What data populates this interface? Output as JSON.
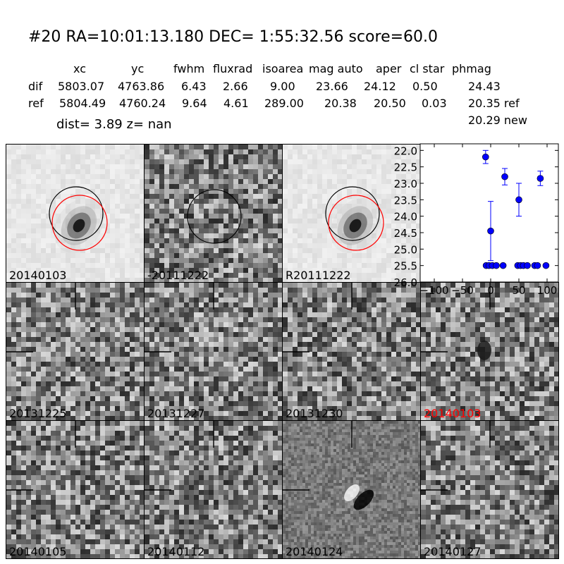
{
  "header": {
    "title": "#20   RA=10:01:13.180 DEC= 1:55:32.56      score=60.0",
    "columns": [
      "xc",
      "yc",
      "fwhm",
      "fluxrad",
      "isoarea",
      "mag auto",
      "aper",
      "cl star",
      "phmag"
    ],
    "rows": [
      {
        "label": "dif",
        "values": [
          "5803.07",
          "4763.86",
          "6.43",
          "2.66",
          "9.00",
          "23.66",
          "24.12",
          "0.50",
          "24.43"
        ]
      },
      {
        "label": "ref",
        "values": [
          "5804.49",
          "4760.24",
          "9.64",
          "4.61",
          "289.00",
          "20.38",
          "20.50",
          "0.03",
          "20.35 ref"
        ]
      }
    ],
    "extra_phmag": "20.29 new",
    "dist_line": "dist=  3.89      z=   nan"
  },
  "panels": [
    {
      "label": "20140103",
      "kind": "galaxy",
      "label_color": "#000000"
    },
    {
      "label": "-20111222",
      "kind": "diff",
      "label_color": "#000000"
    },
    {
      "label": "R20111222",
      "kind": "galaxy",
      "label_color": "#000000"
    },
    {
      "label": "20131225",
      "kind": "noise",
      "label_color": "#000000"
    },
    {
      "label": "20131227",
      "kind": "noise",
      "label_color": "#000000"
    },
    {
      "label": "20131230",
      "kind": "noise",
      "label_color": "#000000"
    },
    {
      "label": "20140103",
      "kind": "noise-blob",
      "label_color": "#ff0000"
    },
    {
      "label": "20140105",
      "kind": "noise",
      "label_color": "#000000"
    },
    {
      "label": "20140112",
      "kind": "noise",
      "label_color": "#000000"
    },
    {
      "label": "20140124",
      "kind": "dipole",
      "label_color": "#000000"
    },
    {
      "label": "20140127",
      "kind": "noise",
      "label_color": "#000000"
    }
  ],
  "chart_data": {
    "type": "scatter",
    "title": "",
    "xlabel": "",
    "ylabel": "",
    "xlim": [
      -125,
      120
    ],
    "ylim": [
      26.0,
      21.8
    ],
    "y_inverted": true,
    "x_ticks": [
      -100,
      -50,
      0,
      50,
      100
    ],
    "x_tick_labels": [
      "−100",
      "−50",
      "0",
      "50",
      "100"
    ],
    "y_ticks": [
      22.0,
      22.5,
      23.0,
      23.5,
      24.0,
      24.5,
      25.0,
      25.5,
      26.0
    ],
    "y_tick_labels": [
      "22.0",
      "22.5",
      "23.0",
      "23.5",
      "24.0",
      "24.5",
      "25.0",
      "25.5",
      "26.0"
    ],
    "marker_color": "#0000ff",
    "points": [
      {
        "x": -9,
        "y": 22.2,
        "err": 0.2
      },
      {
        "x": 0,
        "y": 24.45,
        "err": 0.9
      },
      {
        "x": 25,
        "y": 22.8,
        "err": 0.25
      },
      {
        "x": 50,
        "y": 23.5,
        "err": 0.5
      },
      {
        "x": 88,
        "y": 22.85,
        "err": 0.22
      },
      {
        "x": -8,
        "y": 25.5
      },
      {
        "x": -3,
        "y": 25.5
      },
      {
        "x": 3,
        "y": 25.5
      },
      {
        "x": 10,
        "y": 25.5
      },
      {
        "x": 22,
        "y": 25.5
      },
      {
        "x": 48,
        "y": 25.5
      },
      {
        "x": 53,
        "y": 25.5
      },
      {
        "x": 58,
        "y": 25.5
      },
      {
        "x": 65,
        "y": 25.5
      },
      {
        "x": 78,
        "y": 25.5
      },
      {
        "x": 83,
        "y": 25.5
      },
      {
        "x": 98,
        "y": 25.5
      }
    ]
  }
}
